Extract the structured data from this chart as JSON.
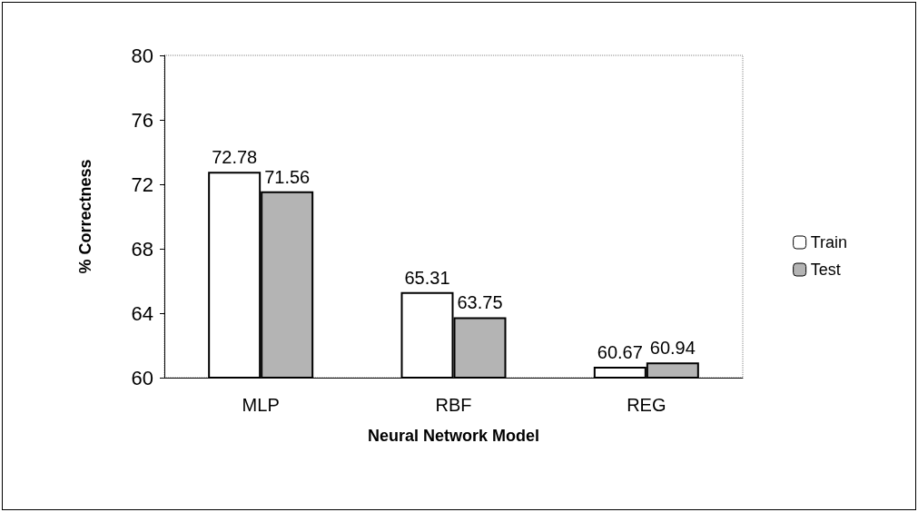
{
  "chart_data": {
    "type": "bar",
    "xlabel": "Neural Network Model",
    "ylabel": "% Correctness",
    "categories": [
      "MLP",
      "RBF",
      "REG"
    ],
    "series": [
      {
        "name": "Train",
        "color": "#ffffff",
        "values": [
          72.78,
          65.31,
          60.67
        ]
      },
      {
        "name": "Test",
        "color": "#b4b4b4",
        "values": [
          71.56,
          63.75,
          60.94
        ]
      }
    ],
    "ylim": [
      60,
      80
    ],
    "yticks": [
      60,
      64,
      68,
      72,
      76,
      80
    ],
    "grid": false,
    "legend": "right",
    "data_labels": true
  }
}
